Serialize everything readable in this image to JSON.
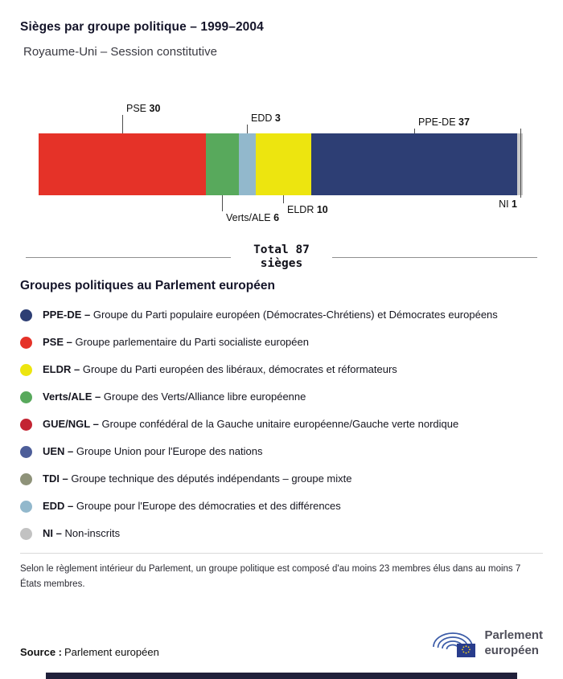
{
  "header": {
    "title": "Sièges par groupe politique – 1999–2004",
    "subtitle": "Royaume-Uni – Session constitutive"
  },
  "chart_data": {
    "type": "bar",
    "variant": "stacked-horizontal",
    "title": "Sièges par groupe politique – 1999–2004",
    "subtitle": "Royaume-Uni – Session constitutive",
    "total_seats": 87,
    "total_label": {
      "line1": "Total 87",
      "line2": "sièges"
    },
    "segments": [
      {
        "group": "PSE",
        "seats": 30,
        "color": "#e53228",
        "callout": "top"
      },
      {
        "group": "Verts/ALE",
        "seats": 6,
        "color": "#58a95c",
        "callout": "bottom"
      },
      {
        "group": "EDD",
        "seats": 3,
        "color": "#92b8cc",
        "callout": "top"
      },
      {
        "group": "ELDR",
        "seats": 10,
        "color": "#ede50f",
        "callout": "bottom"
      },
      {
        "group": "PPE-DE",
        "seats": 37,
        "color": "#2d3e74",
        "callout": "top"
      },
      {
        "group": "NI",
        "seats": 1,
        "color": "#c9c9c9",
        "callout": "bottom"
      }
    ]
  },
  "legend": {
    "title": "Groupes politiques au Parlement européen",
    "items": [
      {
        "abbr": "PPE-DE –",
        "desc": "Groupe du Parti populaire européen (Démocrates-Chrétiens) et Démocrates européens",
        "color": "#2d3e74"
      },
      {
        "abbr": "PSE –",
        "desc": "Groupe parlementaire du Parti socialiste européen",
        "color": "#e53228"
      },
      {
        "abbr": "ELDR –",
        "desc": "Groupe du Parti européen des libéraux, démocrates et réformateurs",
        "color": "#ede50f"
      },
      {
        "abbr": "Verts/ALE –",
        "desc": "Groupe des Verts/Alliance libre européenne",
        "color": "#58a95c"
      },
      {
        "abbr": "GUE/NGL –",
        "desc": "Groupe confédéral de la Gauche unitaire européenne/Gauche verte nordique",
        "color": "#c32432"
      },
      {
        "abbr": "UEN –",
        "desc": "Groupe Union pour l'Europe des nations",
        "color": "#4d5e99"
      },
      {
        "abbr": "TDI –",
        "desc": "Groupe technique des députés indépendants – groupe mixte",
        "color": "#8e9279"
      },
      {
        "abbr": "EDD –",
        "desc": "Groupe pour l'Europe des démocraties et des différences",
        "color": "#92b8cc"
      },
      {
        "abbr": "NI –",
        "desc": "Non-inscrits",
        "color": "#c2c2c2"
      }
    ]
  },
  "footnote": "Selon le règlement intérieur du Parlement, un groupe politique est composé d'au moins 23 membres élus dans au moins 7 États membres.",
  "source": {
    "label": "Source :",
    "value": "Parlement européen"
  },
  "logo": {
    "line1": "Parlement",
    "line2": "européen"
  }
}
